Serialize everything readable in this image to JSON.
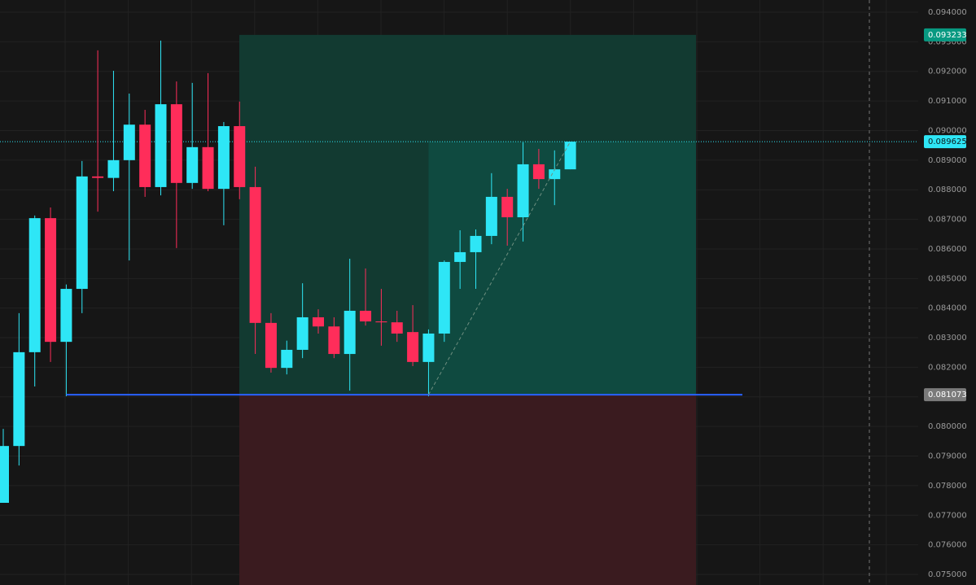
{
  "chart_data": {
    "type": "candlestick",
    "up_color": "#2ee6f6",
    "down_color": "#ff2d5a",
    "ylim": [
      0.075,
      0.094
    ],
    "yticks": [
      {
        "value": 0.075,
        "label": "0.075000"
      },
      {
        "value": 0.076,
        "label": "0.076000"
      },
      {
        "value": 0.077,
        "label": "0.077000"
      },
      {
        "value": 0.078,
        "label": "0.078000"
      },
      {
        "value": 0.079,
        "label": "0.079000"
      },
      {
        "value": 0.08,
        "label": "0.080000"
      },
      {
        "value": 0.081,
        "label": "0.081000"
      },
      {
        "value": 0.082,
        "label": "0.082000"
      },
      {
        "value": 0.083,
        "label": "0.083000"
      },
      {
        "value": 0.084,
        "label": "0.084000"
      },
      {
        "value": 0.085,
        "label": "0.085000"
      },
      {
        "value": 0.086,
        "label": "0.086000"
      },
      {
        "value": 0.087,
        "label": "0.087000"
      },
      {
        "value": 0.088,
        "label": "0.088000"
      },
      {
        "value": 0.089,
        "label": "0.089000"
      },
      {
        "value": 0.09,
        "label": "0.090000"
      },
      {
        "value": 0.091,
        "label": "0.091000"
      },
      {
        "value": 0.092,
        "label": "0.092000"
      },
      {
        "value": 0.093,
        "label": "0.093000"
      },
      {
        "value": 0.094,
        "label": "0.094000"
      }
    ],
    "grid": true,
    "ohlc": [
      [
        0.07742,
        0.07992,
        0.07742,
        0.07934
      ],
      [
        0.07934,
        0.08383,
        0.07868,
        0.08251
      ],
      [
        0.08251,
        0.08713,
        0.08135,
        0.08704
      ],
      [
        0.08704,
        0.0874,
        0.08218,
        0.08286
      ],
      [
        0.08286,
        0.0848,
        0.08102,
        0.08465
      ],
      [
        0.08465,
        0.08897,
        0.08383,
        0.08845
      ],
      [
        0.08845,
        0.09271,
        0.08726,
        0.0884
      ],
      [
        0.0884,
        0.09202,
        0.08795,
        0.089
      ],
      [
        0.089,
        0.09125,
        0.08561,
        0.0902
      ],
      [
        0.0902,
        0.0907,
        0.08776,
        0.08809
      ],
      [
        0.08809,
        0.09304,
        0.08781,
        0.09089
      ],
      [
        0.09089,
        0.09166,
        0.08603,
        0.08823
      ],
      [
        0.08823,
        0.09161,
        0.08803,
        0.08944
      ],
      [
        0.08944,
        0.09194,
        0.08795,
        0.08803
      ],
      [
        0.08803,
        0.09029,
        0.0868,
        0.09015
      ],
      [
        0.09015,
        0.09098,
        0.08768,
        0.08809
      ],
      [
        0.08809,
        0.08878,
        0.08245,
        0.0835
      ],
      [
        0.0835,
        0.08383,
        0.08182,
        0.08198
      ],
      [
        0.08198,
        0.0829,
        0.08176,
        0.08259
      ],
      [
        0.08259,
        0.08484,
        0.08231,
        0.08369
      ],
      [
        0.08369,
        0.08396,
        0.08314,
        0.08338
      ],
      [
        0.08338,
        0.08369,
        0.08231,
        0.08245
      ],
      [
        0.08245,
        0.08567,
        0.08121,
        0.08391
      ],
      [
        0.08391,
        0.08534,
        0.08341,
        0.08355
      ],
      [
        0.08355,
        0.08465,
        0.08273,
        0.08352
      ],
      [
        0.08352,
        0.08391,
        0.08286,
        0.08314
      ],
      [
        0.08319,
        0.0841,
        0.08204,
        0.08218
      ],
      [
        0.08218,
        0.08328,
        0.08102,
        0.08314
      ],
      [
        0.08314,
        0.08561,
        0.08286,
        0.08556
      ],
      [
        0.08556,
        0.08663,
        0.08465,
        0.08589
      ],
      [
        0.08589,
        0.08666,
        0.08465,
        0.08644
      ],
      [
        0.08644,
        0.08856,
        0.08616,
        0.08776
      ],
      [
        0.08776,
        0.08803,
        0.08611,
        0.08707
      ],
      [
        0.08707,
        0.0896,
        0.08625,
        0.08886
      ],
      [
        0.08886,
        0.08938,
        0.08803,
        0.08836
      ],
      [
        0.08836,
        0.08933,
        0.08748,
        0.08869
      ],
      [
        0.08869,
        0.089625,
        0.08869,
        0.089625
      ]
    ],
    "position": {
      "target": 0.093233,
      "entry": 0.081073
    }
  }
}
